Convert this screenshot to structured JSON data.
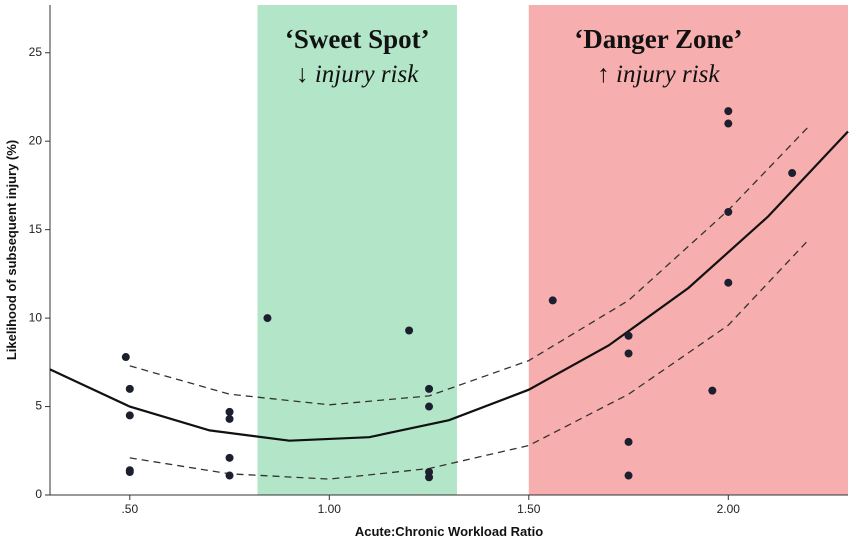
{
  "chart_data": {
    "type": "scatter",
    "x_label": "Acute:Chronic Workload Ratio",
    "y_label": "Likelihood of subsequent injury (%)",
    "xlim": [
      0.3,
      2.3
    ],
    "ylim": [
      0,
      27.7
    ],
    "xticks": [
      {
        "value": 0.5,
        "label": ".50"
      },
      {
        "value": 1.0,
        "label": "1.00"
      },
      {
        "value": 1.5,
        "label": "1.50"
      },
      {
        "value": 2.0,
        "label": "2.00"
      }
    ],
    "yticks": [
      0,
      5,
      10,
      15,
      20,
      25
    ],
    "regions": [
      {
        "label": "‘Sweet Spot’",
        "sublabel": "↓ injury risk",
        "x": [
          0.82,
          1.32
        ],
        "color": "#b3e6c9"
      },
      {
        "label": "‘Danger Zone’",
        "sublabel": "↑ injury risk",
        "x": [
          1.5,
          2.3
        ],
        "color": "#f7aeae"
      }
    ],
    "points": {
      "color": "#1c1f2e",
      "x": [
        0.49,
        0.5,
        0.5,
        0.5,
        0.5,
        0.75,
        0.75,
        0.75,
        0.75,
        0.845,
        1.2,
        1.25,
        1.25,
        1.25,
        1.25,
        1.56,
        1.75,
        1.75,
        1.75,
        1.75,
        1.96,
        2.0,
        2.0,
        2.0,
        2.0,
        2.16
      ],
      "values": [
        7.8,
        6.0,
        4.5,
        1.4,
        1.3,
        4.7,
        4.3,
        2.1,
        1.1,
        10.0,
        9.3,
        6.0,
        5.0,
        1.3,
        1.0,
        11.0,
        9.0,
        8.0,
        3.0,
        1.1,
        5.9,
        21.7,
        21.0,
        16.0,
        12.0,
        18.2
      ]
    },
    "fit": {
      "color": "#111111",
      "x": [
        0.3,
        0.5,
        0.7,
        0.9,
        1.1,
        1.3,
        1.5,
        1.7,
        1.9,
        2.1,
        2.3
      ],
      "values": [
        7.1,
        5.0,
        3.65,
        3.07,
        3.27,
        4.23,
        5.95,
        8.45,
        11.7,
        15.75,
        20.55
      ]
    },
    "ci_upper": {
      "color": "#333333",
      "x": [
        0.5,
        0.75,
        1.0,
        1.25,
        1.5,
        1.75,
        2.0,
        2.2
      ],
      "values": [
        7.3,
        5.7,
        5.1,
        5.6,
        7.6,
        11.0,
        16.1,
        20.8
      ]
    },
    "ci_lower": {
      "color": "#333333",
      "x": [
        0.5,
        0.75,
        1.0,
        1.25,
        1.5,
        1.75,
        2.0,
        2.2
      ],
      "values": [
        2.1,
        1.2,
        0.9,
        1.5,
        2.8,
        5.7,
        9.6,
        14.4
      ]
    }
  }
}
